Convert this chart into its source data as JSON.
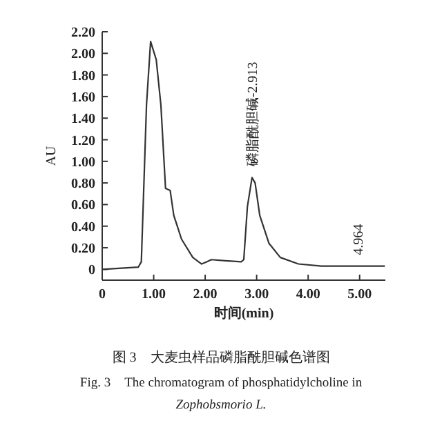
{
  "chart_data": {
    "type": "line",
    "xlabel": "时间(min)",
    "ylabel": "AU",
    "xlim": [
      0,
      5.5
    ],
    "ylim": [
      -0.1,
      2.2
    ],
    "xticks": [
      0,
      {
        "value": 1,
        "label": "1.00"
      },
      {
        "value": 2,
        "label": "2.00"
      },
      {
        "value": 3,
        "label": "3.00"
      },
      {
        "value": 4,
        "label": "4.00"
      },
      {
        "value": 5,
        "label": "5.00"
      }
    ],
    "yticks": [
      0,
      {
        "value": 0.2,
        "label": "0.20"
      },
      {
        "value": 0.4,
        "label": "0.40"
      },
      {
        "value": 0.6,
        "label": "0.60"
      },
      {
        "value": 0.8,
        "label": "0.80"
      },
      {
        "value": 1,
        "label": "1.00"
      },
      {
        "value": 1.2,
        "label": "1.20"
      },
      {
        "value": 1.4,
        "label": "1.40"
      },
      {
        "value": 1.6,
        "label": "1.60"
      },
      {
        "value": 1.8,
        "label": "1.80"
      },
      {
        "value": 2,
        "label": "2.00"
      },
      {
        "value": 2.2,
        "label": "2.20"
      }
    ],
    "grid": false,
    "marker": "none",
    "line_style": "solid",
    "x": [
      0,
      0.7,
      0.76,
      0.86,
      0.94,
      1.05,
      1.14,
      1.23,
      1.32,
      1.39,
      1.54,
      1.76,
      1.93,
      2.03,
      2.12,
      2.39,
      2.7,
      2.75,
      2.82,
      2.91,
      2.97,
      3.06,
      3.24,
      3.46,
      3.81,
      4.26,
      5.49
    ],
    "series": [
      {
        "color": "#333333",
        "values": [
          0,
          0.02,
          0.07,
          1.52,
          2.11,
          1.94,
          1.52,
          0.75,
          0.73,
          0.5,
          0.28,
          0.11,
          0.05,
          0.07,
          0.09,
          0.08,
          0.07,
          0.09,
          0.58,
          0.85,
          0.8,
          0.5,
          0.24,
          0.11,
          0.05,
          0.03,
          0.03
        ]
      }
    ],
    "annotations": [
      {
        "text": "磷脂酰胆碱-2.913",
        "x": 2.913,
        "y": 0.85
      },
      {
        "text": "4.964",
        "x": 4.964,
        "y": 0.03
      },
      "图 3　大麦虫样品磷脂酰胆碱色谱图",
      "Fig. 3　The chromatogram of phosphatidylcholine in",
      "Zophobsmorio L."
    ]
  }
}
